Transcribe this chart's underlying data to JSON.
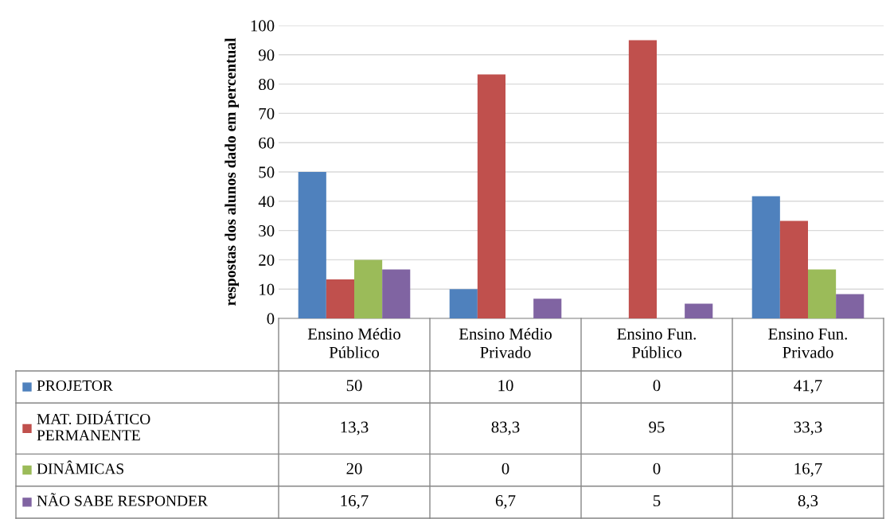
{
  "chart_data": {
    "type": "bar",
    "ylabel": "respostas dos alunos dado em percentual",
    "categories": [
      "Ensino Médio\nPúblico",
      "Ensino Médio\nPrivado",
      "Ensino Fun.\nPúblico",
      "Ensino Fun.\nPrivado"
    ],
    "series": [
      {
        "name": "PROJETOR",
        "color": "#4f81bd",
        "values": [
          50,
          10,
          0,
          41.7
        ],
        "value_labels": [
          "50",
          "10",
          "0",
          "41,7"
        ]
      },
      {
        "name": "MAT. DIDÁTICO\nPERMANENTE",
        "color": "#c0504d",
        "values": [
          13.3,
          83.3,
          95,
          33.3
        ],
        "value_labels": [
          "13,3",
          "83,3",
          "95",
          "33,3"
        ]
      },
      {
        "name": "DINÂMICAS",
        "color": "#9bbb59",
        "values": [
          20,
          0,
          0,
          16.7
        ],
        "value_labels": [
          "20",
          "0",
          "0",
          "16,7"
        ]
      },
      {
        "name": "NÃO SABE RESPONDER",
        "color": "#8064a2",
        "values": [
          16.7,
          6.7,
          5,
          8.3
        ],
        "value_labels": [
          "16,7",
          "6,7",
          "5",
          "8,3"
        ]
      }
    ],
    "ylim": [
      0,
      100
    ],
    "yticks": [
      0,
      10,
      20,
      30,
      40,
      50,
      60,
      70,
      80,
      90,
      100
    ],
    "grid": "y",
    "legend": "bottom"
  }
}
